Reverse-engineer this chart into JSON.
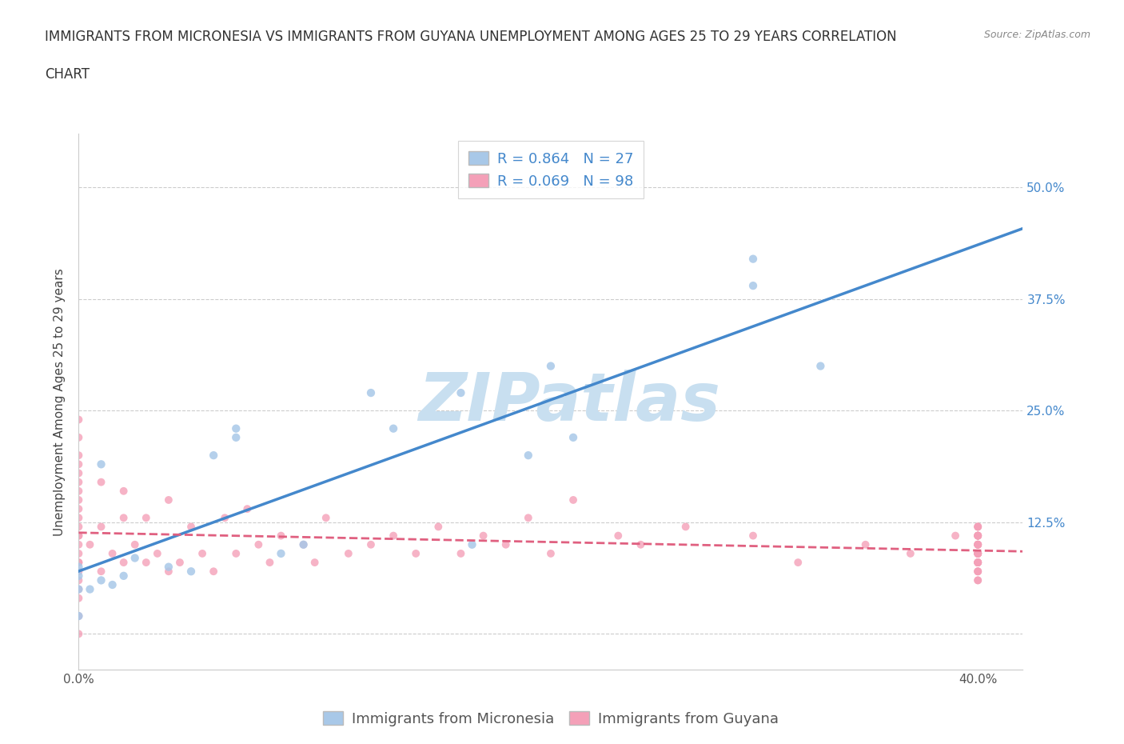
{
  "title_line1": "IMMIGRANTS FROM MICRONESIA VS IMMIGRANTS FROM GUYANA UNEMPLOYMENT AMONG AGES 25 TO 29 YEARS CORRELATION",
  "title_line2": "CHART",
  "source_text": "Source: ZipAtlas.com",
  "ylabel": "Unemployment Among Ages 25 to 29 years",
  "xlim": [
    0.0,
    0.42
  ],
  "ylim": [
    -0.04,
    0.56
  ],
  "xticks": [
    0.0,
    0.1,
    0.2,
    0.3,
    0.4
  ],
  "xticklabels": [
    "0.0%",
    "",
    "",
    "",
    "40.0%"
  ],
  "yticks": [
    0.0,
    0.125,
    0.25,
    0.375,
    0.5
  ],
  "yticklabels_right": [
    "",
    "12.5%",
    "25.0%",
    "37.5%",
    "50.0%"
  ],
  "watermark": "ZIPatlas",
  "legend_text1": "R = 0.864   N = 27",
  "legend_text2": "R = 0.069   N = 98",
  "legend_label1": "Immigrants from Micronesia",
  "legend_label2": "Immigrants from Guyana",
  "color_micronesia": "#a8c8e8",
  "color_guyana": "#f4a0b8",
  "color_line1": "#4488cc",
  "color_line2": "#e06080",
  "micronesia_x": [
    0.0,
    0.0,
    0.0,
    0.0,
    0.005,
    0.01,
    0.01,
    0.015,
    0.02,
    0.025,
    0.04,
    0.05,
    0.06,
    0.07,
    0.07,
    0.09,
    0.1,
    0.13,
    0.14,
    0.17,
    0.175,
    0.2,
    0.21,
    0.22,
    0.3,
    0.3,
    0.33
  ],
  "micronesia_y": [
    0.02,
    0.05,
    0.065,
    0.075,
    0.05,
    0.06,
    0.19,
    0.055,
    0.065,
    0.085,
    0.075,
    0.07,
    0.2,
    0.23,
    0.22,
    0.09,
    0.1,
    0.27,
    0.23,
    0.27,
    0.1,
    0.2,
    0.3,
    0.22,
    0.39,
    0.42,
    0.3
  ],
  "guyana_x": [
    0.0,
    0.0,
    0.0,
    0.0,
    0.0,
    0.0,
    0.0,
    0.0,
    0.0,
    0.0,
    0.0,
    0.0,
    0.0,
    0.0,
    0.0,
    0.0,
    0.0,
    0.0,
    0.0,
    0.0,
    0.0,
    0.0,
    0.0,
    0.005,
    0.01,
    0.01,
    0.01,
    0.015,
    0.02,
    0.02,
    0.02,
    0.025,
    0.03,
    0.03,
    0.035,
    0.04,
    0.04,
    0.045,
    0.05,
    0.055,
    0.06,
    0.065,
    0.07,
    0.075,
    0.08,
    0.085,
    0.09,
    0.1,
    0.105,
    0.11,
    0.12,
    0.13,
    0.14,
    0.15,
    0.16,
    0.17,
    0.18,
    0.19,
    0.2,
    0.21,
    0.22,
    0.24,
    0.25,
    0.27,
    0.3,
    0.32,
    0.35,
    0.37,
    0.39,
    0.4,
    0.4,
    0.4,
    0.4,
    0.4,
    0.4,
    0.4,
    0.4,
    0.4,
    0.4,
    0.4,
    0.4,
    0.4,
    0.4,
    0.4,
    0.4,
    0.4,
    0.4,
    0.4,
    0.4,
    0.4,
    0.4,
    0.4,
    0.4,
    0.4,
    0.4,
    0.4,
    0.4,
    0.4
  ],
  "guyana_y": [
    0.0,
    0.02,
    0.04,
    0.05,
    0.06,
    0.07,
    0.08,
    0.09,
    0.1,
    0.11,
    0.12,
    0.13,
    0.14,
    0.15,
    0.16,
    0.17,
    0.18,
    0.2,
    0.22,
    0.24,
    0.08,
    0.11,
    0.19,
    0.1,
    0.07,
    0.12,
    0.17,
    0.09,
    0.08,
    0.13,
    0.16,
    0.1,
    0.08,
    0.13,
    0.09,
    0.07,
    0.15,
    0.08,
    0.12,
    0.09,
    0.07,
    0.13,
    0.09,
    0.14,
    0.1,
    0.08,
    0.11,
    0.1,
    0.08,
    0.13,
    0.09,
    0.1,
    0.11,
    0.09,
    0.12,
    0.09,
    0.11,
    0.1,
    0.13,
    0.09,
    0.15,
    0.11,
    0.1,
    0.12,
    0.11,
    0.08,
    0.1,
    0.09,
    0.11,
    0.08,
    0.09,
    0.1,
    0.11,
    0.12,
    0.07,
    0.09,
    0.1,
    0.11,
    0.08,
    0.12,
    0.09,
    0.08,
    0.1,
    0.11,
    0.07,
    0.09,
    0.1,
    0.06,
    0.08,
    0.11,
    0.09,
    0.1,
    0.08,
    0.07,
    0.09,
    0.11,
    0.06,
    0.12
  ],
  "background_color": "#ffffff",
  "grid_color": "#cccccc",
  "title_fontsize": 12,
  "axis_label_fontsize": 11,
  "tick_fontsize": 11,
  "legend_fontsize": 13,
  "watermark_color": "#c8dff0",
  "watermark_fontsize": 60
}
